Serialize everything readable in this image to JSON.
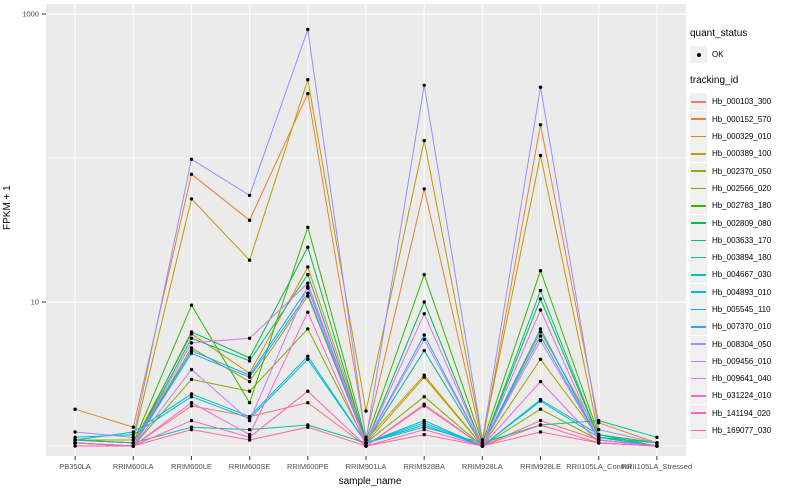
{
  "chart_data": {
    "type": "line",
    "title": "",
    "xlabel": "sample_name",
    "ylabel": "FPKM + 1",
    "y_scale": "log10",
    "ylim": [
      1,
      1150
    ],
    "grid": "on",
    "legend_position": "right",
    "y_ticks": [
      {
        "label": "10",
        "value": 10
      },
      {
        "label": "1000",
        "value": 1000
      }
    ],
    "y_minor_gridlines": [
      1,
      100
    ],
    "y_major_gridlines": [
      10,
      1000
    ],
    "categories": [
      "PB350LA",
      "RRIM600LA",
      "RRIM600LE",
      "RRIM600SE",
      "RRIM600PE",
      "RRIM901LA",
      "RRIM928BA",
      "RRIM928LA",
      "RRIM928LE",
      "RRII105LA_Control",
      "RRII105LA_Stressed"
    ],
    "point_color": "#000000",
    "legend": {
      "quant_status_title": "quant_status",
      "ok_label": "OK",
      "tracking_title": "tracking_id"
    },
    "series": [
      {
        "name": "Hb_000103_300",
        "color": "#F8766D",
        "values": [
          1.05,
          1.0,
          1.9,
          1.6,
          2.0,
          1.0,
          1.9,
          1.0,
          1.5,
          1.1,
          1.0
        ]
      },
      {
        "name": "Hb_000152_570",
        "color": "#EA8331",
        "values": [
          1.8,
          1.35,
          77,
          37,
          280,
          1.15,
          61,
          1.05,
          170,
          1.45,
          1.05
        ]
      },
      {
        "name": "Hb_000329_010",
        "color": "#D89000",
        "values": [
          1.1,
          1.05,
          6.0,
          3.2,
          17.5,
          1.1,
          3.1,
          1.0,
          6.2,
          1.2,
          1.0
        ]
      },
      {
        "name": "Hb_000389_100",
        "color": "#C09B00",
        "values": [
          1.1,
          1.1,
          52,
          19.5,
          350,
          1.75,
          132,
          1.1,
          104,
          1.2,
          1.0
        ]
      },
      {
        "name": "Hb_002370_050",
        "color": "#A3A500",
        "values": [
          1.05,
          1.0,
          4.8,
          2.8,
          11,
          1.05,
          3.0,
          1.0,
          4.0,
          1.15,
          1.0
        ]
      },
      {
        "name": "Hb_002566_020",
        "color": "#7CAE00",
        "values": [
          1.05,
          1.0,
          2.9,
          2.4,
          6.5,
          1.05,
          2.2,
          1.0,
          1.8,
          1.1,
          1.0
        ]
      },
      {
        "name": "Hb_002783_180",
        "color": "#39B600",
        "values": [
          1.1,
          1.05,
          9.5,
          2.0,
          33,
          1.1,
          15.5,
          1.05,
          16.5,
          1.2,
          1.05
        ]
      },
      {
        "name": "Hb_002809_080",
        "color": "#00BB4E",
        "values": [
          1.05,
          1.0,
          6.2,
          4.1,
          24,
          1.05,
          10,
          1.0,
          10.5,
          1.15,
          1.0
        ]
      },
      {
        "name": "Hb_003633_170",
        "color": "#00BF7D",
        "values": [
          1.05,
          1.0,
          5.6,
          3.9,
          15.5,
          1.05,
          4.6,
          1.0,
          12,
          1.15,
          1.05
        ]
      },
      {
        "name": "Hb_003894_180",
        "color": "#00C1A3",
        "values": [
          1.1,
          1.05,
          1.35,
          1.3,
          1.4,
          1.05,
          1.35,
          1.05,
          1.4,
          1.5,
          1.15
        ]
      },
      {
        "name": "Hb_004667_030",
        "color": "#00BFC4",
        "values": [
          1.1,
          1.25,
          2.3,
          1.6,
          4.2,
          1.05,
          1.5,
          1.0,
          2.1,
          1.2,
          1.0
        ]
      },
      {
        "name": "Hb_004893_010",
        "color": "#00BAE0",
        "values": [
          1.15,
          1.2,
          2.2,
          1.55,
          4.0,
          1.05,
          1.45,
          1.0,
          2.05,
          1.15,
          1.0
        ]
      },
      {
        "name": "Hb_005545_110",
        "color": "#00B0F6",
        "values": [
          1.05,
          1.0,
          4.6,
          3.1,
          12.5,
          1.05,
          1.4,
          1.0,
          6.5,
          1.1,
          1.0
        ]
      },
      {
        "name": "Hb_007370_010",
        "color": "#35A2FF",
        "values": [
          1.05,
          1.0,
          4.4,
          3.0,
          11.5,
          1.05,
          5.9,
          1.0,
          5.8,
          1.1,
          1.0
        ]
      },
      {
        "name": "Hb_008304_050",
        "color": "#9590FF",
        "values": [
          1.25,
          1.15,
          98,
          55,
          780,
          1.1,
          320,
          1.1,
          310,
          1.3,
          1.05
        ]
      },
      {
        "name": "Hb_009456_010",
        "color": "#C77CFF",
        "values": [
          1.05,
          1.0,
          3.4,
          1.5,
          12.8,
          1.05,
          5.5,
          1.0,
          5.4,
          1.1,
          1.0
        ]
      },
      {
        "name": "Hb_009641_040",
        "color": "#E76BF3",
        "values": [
          1.05,
          1.0,
          5.2,
          5.6,
          13.5,
          1.05,
          8.3,
          1.0,
          8.8,
          1.1,
          1.0
        ]
      },
      {
        "name": "Hb_031224_010",
        "color": "#FA62DB",
        "values": [
          1.05,
          1.0,
          2.0,
          1.2,
          8.5,
          1.0,
          1.95,
          1.0,
          2.8,
          1.05,
          1.0
        ]
      },
      {
        "name": "Hb_141194_020",
        "color": "#FF62BC",
        "values": [
          1.05,
          1.0,
          1.5,
          1.15,
          2.4,
          1.0,
          1.3,
          1.0,
          1.4,
          1.05,
          1.0
        ]
      },
      {
        "name": "Hb_169077_030",
        "color": "#FF6A98",
        "values": [
          1.0,
          1.0,
          1.3,
          1.1,
          1.35,
          1.0,
          1.2,
          1.0,
          1.25,
          1.05,
          1.0
        ]
      }
    ]
  },
  "colors": {
    "panel_bg": "#EBEBEB",
    "gridline": "#FFFFFF",
    "legend_key_bg": "#F0F0F0",
    "tick_text": "#4D4D4D",
    "axis_text": "#000000"
  }
}
